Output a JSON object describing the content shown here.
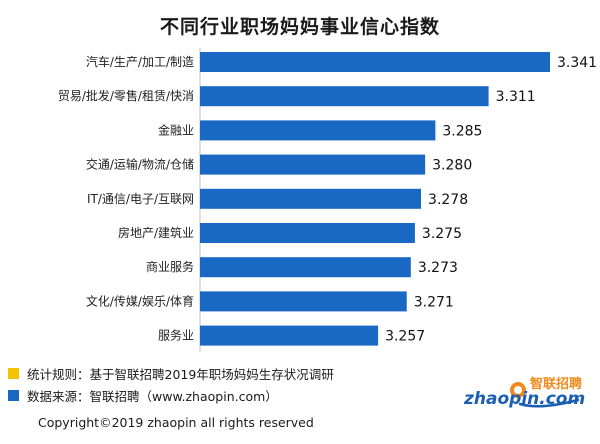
{
  "colors": {
    "bar": "#1868c4",
    "legend_yellow": "#f5c400",
    "legend_blue": "#1868c4",
    "logo_orange": "#f08a1c",
    "logo_blue": "#1a5fb4"
  },
  "chart_data": {
    "type": "bar",
    "orientation": "horizontal",
    "title": "不同行业职场妈妈事业信心指数",
    "categories": [
      "汽车/生产/加工/制造",
      "贸易/批发/零售/租赁/快消",
      "金融业",
      "交通/运输/物流/仓储",
      "IT/通信/电子/互联网",
      "房地产/建筑业",
      "商业服务",
      "文化/传媒/娱乐/体育",
      "服务业"
    ],
    "values": [
      3.341,
      3.311,
      3.285,
      3.28,
      3.278,
      3.275,
      3.273,
      3.271,
      3.257
    ],
    "value_labels": [
      "3.341",
      "3.311",
      "3.285",
      "3.280",
      "3.278",
      "3.275",
      "3.273",
      "3.271",
      "3.257"
    ],
    "xlim": [
      3.17,
      3.341
    ],
    "grid": false,
    "legend": "none"
  },
  "notes": {
    "rule": "统计规则：基于智联招聘2019年职场妈妈生存状况调研",
    "source": "数据来源：智联招聘（www.zhaopin.com）"
  },
  "copyright": "Copyright©2019 zhaopin all rights reserved",
  "logo": {
    "brand_cn": "智联招聘",
    "brand_en": "zhaopin.com"
  }
}
